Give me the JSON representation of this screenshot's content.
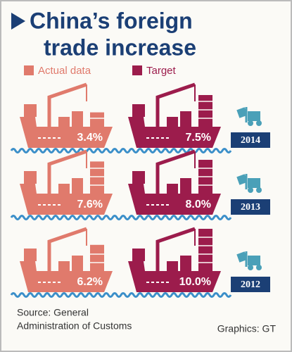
{
  "chart_data": {
    "type": "ship-pictogram",
    "title_lines": [
      "China’s foreign",
      "trade increase"
    ],
    "categories": [
      "2014",
      "2013",
      "2012"
    ],
    "series": [
      {
        "name": "Actual data",
        "color": "#e07a6c",
        "values": [
          3.4,
          7.6,
          6.2
        ],
        "value_labels": [
          "3.4%",
          "7.6%",
          "6.2%"
        ]
      },
      {
        "name": "Target",
        "color": "#9c1c4c",
        "values": [
          7.5,
          8.0,
          10.0
        ],
        "value_labels": [
          "7.5%",
          "8.0%",
          "10.0%"
        ]
      }
    ],
    "source_lines": [
      "Source: General",
      "Administration of Customs"
    ],
    "credit": "Graphics: GT"
  }
}
